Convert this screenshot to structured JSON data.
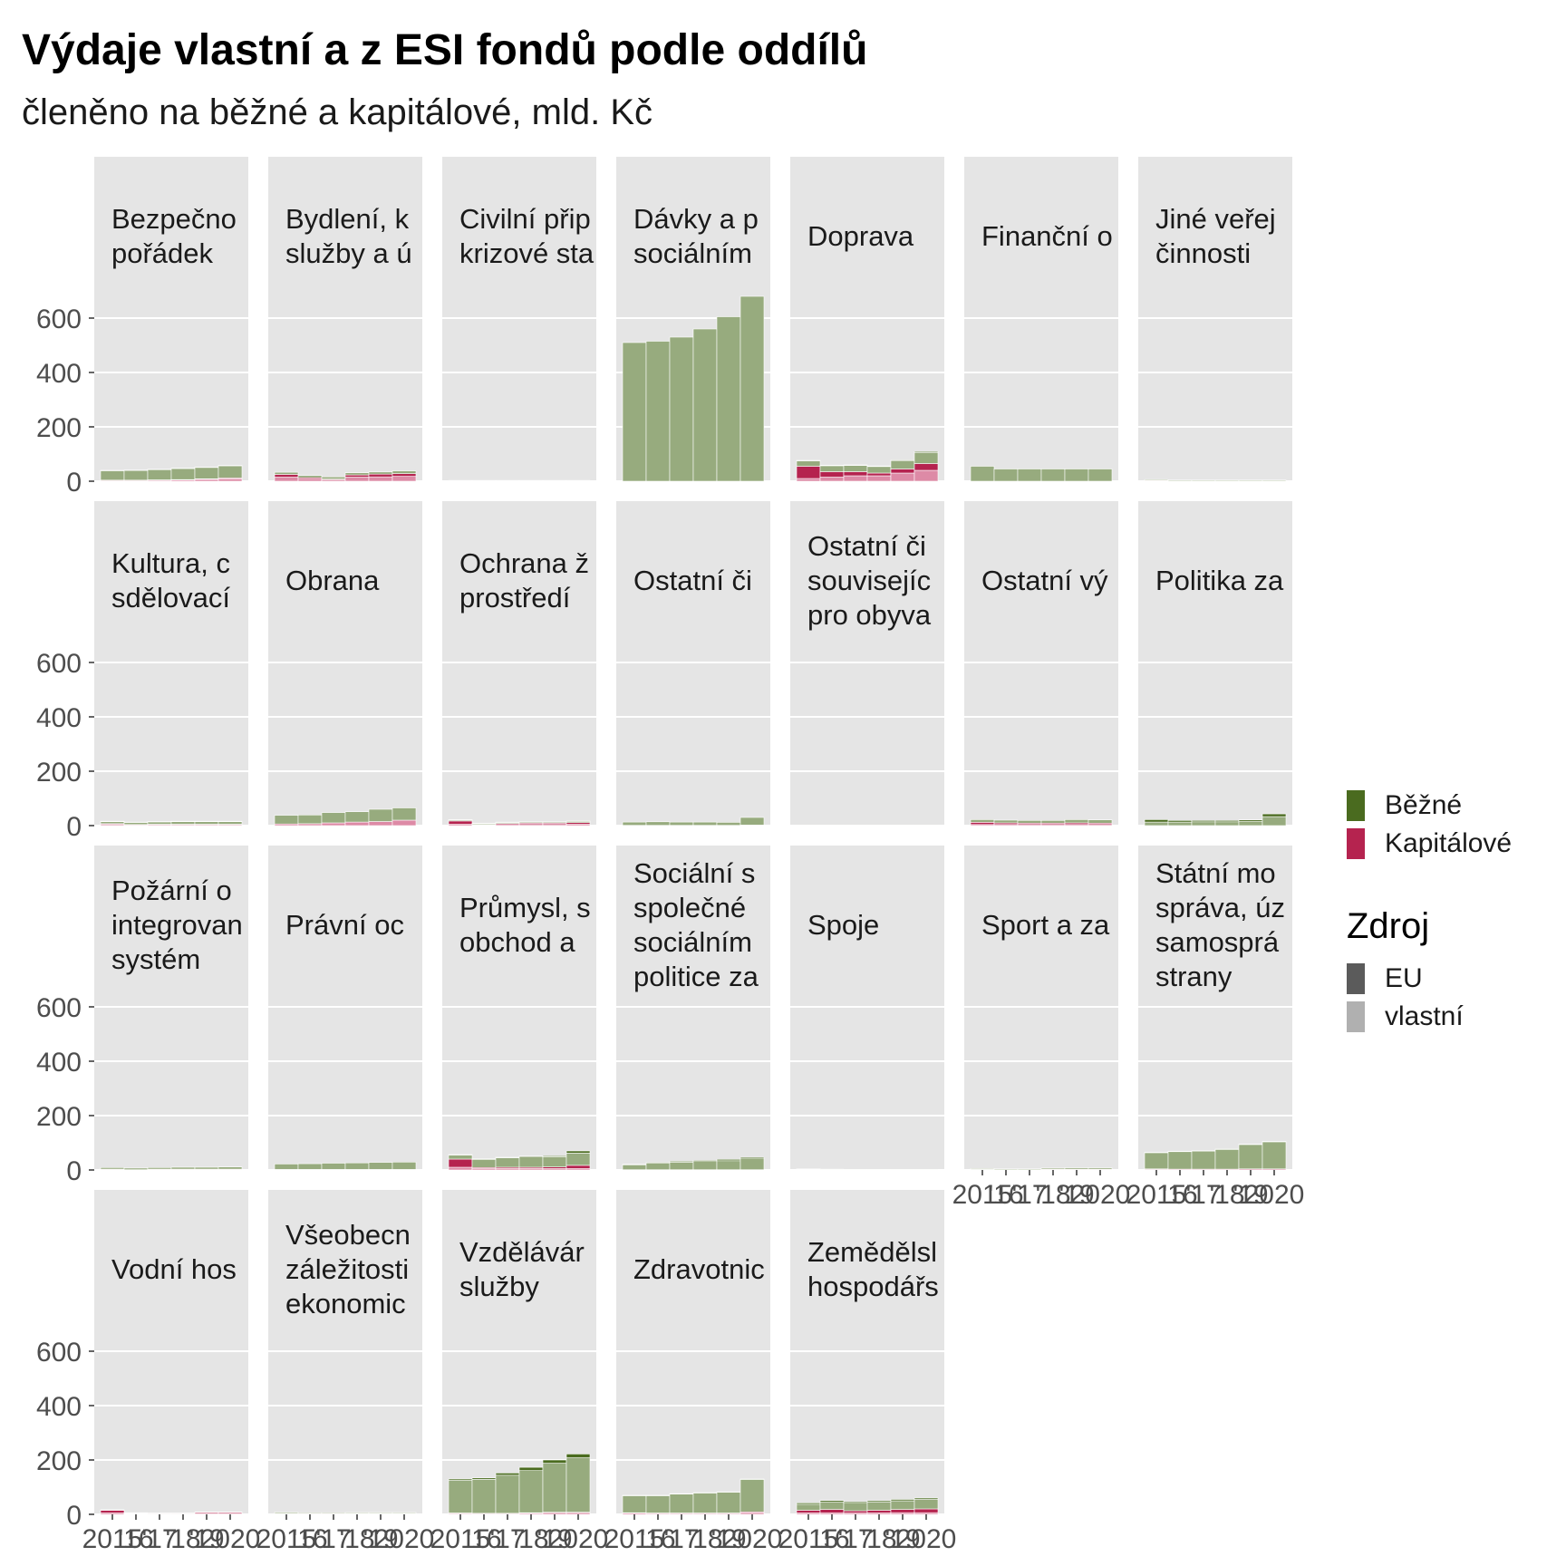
{
  "chart_data": {
    "type": "bar",
    "title": "Výdaje vlastní a z ESI fondů podle oddílů",
    "subtitle": "členěno na běžné a kapitálové, mld. Kč",
    "facet_layout": "wrap, 7 columns, shared axes",
    "x": [
      "2015",
      "2016",
      "2017",
      "2018",
      "2019",
      "2020"
    ],
    "x_tick_labels": [
      "2015",
      "'16",
      "'17",
      "'18",
      "'19",
      "2020"
    ],
    "y_ticks": [
      0,
      200,
      400,
      600
    ],
    "ylim": [
      0,
      700
    ],
    "xlabel": "",
    "ylabel": "",
    "grid": true,
    "legend": {
      "position": "right",
      "type_items": [
        {
          "label": "Běžné",
          "color": "#4a6b1f"
        },
        {
          "label": "Kapitálové",
          "color": "#b5234f"
        }
      ],
      "source_title": "Zdroj",
      "source_items": [
        {
          "label": "EU",
          "color": "#5b5b5b"
        },
        {
          "label": "vlastní",
          "color": "#b0b0b0"
        }
      ]
    },
    "colors": {
      "bezne_vlastni": "#97ab7e",
      "bezne_eu": "#4a6b1f",
      "kapitalove_vlastni": "#dd8aa6",
      "kapitalove_eu": "#b5234f",
      "panel_bg": "#e5e5e5",
      "grid": "#ffffff",
      "axis_text": "#4d4d4d"
    },
    "stack_order": [
      "kapitalove_vlastni",
      "kapitalove_eu",
      "bezne_vlastni",
      "bezne_eu"
    ],
    "facets": [
      {
        "label": "Bezpečnost a veřejný pořádek",
        "shown": [
          "Bezpečno",
          "pořádek"
        ],
        "bezne_vlastni": [
          35,
          36,
          38,
          41,
          42,
          45
        ],
        "bezne_eu": [
          1,
          1,
          1,
          1,
          1,
          1
        ],
        "kapitalove_vlastni": [
          3,
          3,
          4,
          5,
          7,
          9
        ],
        "kapitalove_eu": [
          1,
          1,
          1,
          1,
          2,
          3
        ]
      },
      {
        "label": "Bydlení, komunální služby a územní rozvoj",
        "shown": [
          "Bydlení, k",
          "služby a ú"
        ],
        "bezne_vlastni": [
          8,
          8,
          8,
          8,
          8,
          10
        ],
        "bezne_eu": [
          0,
          0,
          0,
          0,
          0,
          0
        ],
        "kapitalove_vlastni": [
          15,
          8,
          5,
          15,
          16,
          18
        ],
        "kapitalove_eu": [
          10,
          5,
          3,
          8,
          10,
          10
        ]
      },
      {
        "label": "Civilní připravenost na krizové stavy",
        "shown": [
          "Civilní přip",
          "krizové sta"
        ],
        "bezne_vlastni": [
          2,
          2,
          2,
          2,
          2,
          2
        ],
        "bezne_eu": [
          0,
          0,
          0,
          0,
          0,
          0
        ],
        "kapitalove_vlastni": [
          1,
          1,
          1,
          1,
          1,
          1
        ],
        "kapitalove_eu": [
          0,
          0,
          0,
          0,
          0,
          0
        ]
      },
      {
        "label": "Dávky a podpory v sociálním zabezpečení",
        "shown": [
          "Dávky a p",
          "sociálním"
        ],
        "bezne_vlastni": [
          510,
          515,
          530,
          560,
          605,
          680
        ],
        "bezne_eu": [
          0,
          0,
          0,
          0,
          0,
          0
        ],
        "kapitalove_vlastni": [
          0,
          0,
          0,
          0,
          0,
          0
        ],
        "kapitalove_eu": [
          0,
          0,
          0,
          0,
          0,
          0
        ]
      },
      {
        "label": "Doprava",
        "shown": [
          "Doprava"
        ],
        "bezne_vlastni": [
          20,
          22,
          23,
          24,
          30,
          40
        ],
        "bezne_eu": [
          2,
          2,
          2,
          2,
          3,
          4
        ],
        "kapitalove_vlastni": [
          10,
          15,
          20,
          20,
          30,
          40
        ],
        "kapitalove_eu": [
          45,
          20,
          15,
          10,
          15,
          25
        ]
      },
      {
        "label": "Finanční operace",
        "shown": [
          "Finanční o"
        ],
        "bezne_vlastni": [
          55,
          45,
          45,
          45,
          45,
          45
        ],
        "bezne_eu": [
          0,
          0,
          0,
          0,
          0,
          0
        ],
        "kapitalove_vlastni": [
          0,
          0,
          0,
          0,
          0,
          0
        ],
        "kapitalove_eu": [
          0,
          0,
          0,
          0,
          0,
          0
        ]
      },
      {
        "label": "Jiné veřejné služby a činnosti",
        "shown": [
          "Jiné veřej",
          "činnosti"
        ],
        "bezne_vlastni": [
          3,
          3,
          3,
          3,
          3,
          3
        ],
        "bezne_eu": [
          0,
          0,
          0,
          0,
          0,
          0
        ],
        "kapitalove_vlastni": [
          2,
          1,
          1,
          1,
          1,
          1
        ],
        "kapitalove_eu": [
          1,
          0,
          0,
          0,
          0,
          0
        ]
      },
      {
        "label": "Kultura, církve a sdělovací prostředky",
        "shown": [
          "Kultura, c",
          "sdělovací"
        ],
        "bezne_vlastni": [
          8,
          8,
          9,
          10,
          10,
          10
        ],
        "bezne_eu": [
          1,
          1,
          1,
          1,
          1,
          1
        ],
        "kapitalove_vlastni": [
          4,
          3,
          4,
          4,
          4,
          4
        ],
        "kapitalove_eu": [
          3,
          1,
          1,
          1,
          1,
          1
        ]
      },
      {
        "label": "Obrana",
        "shown": [
          "Obrana"
        ],
        "bezne_vlastni": [
          32,
          32,
          38,
          38,
          45,
          45
        ],
        "bezne_eu": [
          0,
          0,
          0,
          0,
          0,
          0
        ],
        "kapitalove_vlastni": [
          6,
          7,
          10,
          13,
          15,
          20
        ],
        "kapitalove_eu": [
          0,
          0,
          0,
          0,
          0,
          0
        ]
      },
      {
        "label": "Ochrana životního prostředí",
        "shown": [
          "Ochrana ž",
          "prostředí"
        ],
        "bezne_vlastni": [
          4,
          4,
          4,
          4,
          4,
          5
        ],
        "bezne_eu": [
          1,
          1,
          1,
          1,
          1,
          1
        ],
        "kapitalove_vlastni": [
          5,
          2,
          4,
          4,
          4,
          5
        ],
        "kapitalove_eu": [
          12,
          2,
          4,
          5,
          5,
          6
        ]
      },
      {
        "label": "Ostatní činnosti",
        "shown": [
          "Ostatní či"
        ],
        "bezne_vlastni": [
          12,
          13,
          12,
          12,
          11,
          28
        ],
        "bezne_eu": [
          0,
          0,
          0,
          0,
          0,
          0
        ],
        "kapitalove_vlastni": [
          1,
          1,
          1,
          1,
          1,
          2
        ],
        "kapitalove_eu": [
          0,
          0,
          0,
          0,
          0,
          0
        ]
      },
      {
        "label": "Ostatní činnosti související se službami pro obyvatelstvo",
        "shown": [
          "Ostatní či",
          "souvisejíc",
          "pro obyva"
        ],
        "bezne_vlastni": [
          1,
          1,
          1,
          1,
          1,
          1
        ],
        "bezne_eu": [
          0,
          0,
          0,
          0,
          0,
          0
        ],
        "kapitalove_vlastni": [
          1,
          1,
          1,
          1,
          1,
          1
        ],
        "kapitalove_eu": [
          0,
          0,
          0,
          0,
          0,
          0
        ]
      },
      {
        "label": "Ostatní výdaje",
        "shown": [
          "Ostatní vý"
        ],
        "bezne_vlastni": [
          10,
          10,
          10,
          10,
          12,
          12
        ],
        "bezne_eu": [
          0,
          0,
          0,
          0,
          0,
          0
        ],
        "kapitalove_vlastni": [
          4,
          4,
          4,
          4,
          4,
          4
        ],
        "kapitalove_eu": [
          8,
          6,
          5,
          5,
          6,
          5
        ]
      },
      {
        "label": "Politika zaměstnanosti",
        "shown": [
          "Politika za"
        ],
        "bezne_vlastni": [
          13,
          13,
          14,
          14,
          16,
          33
        ],
        "bezne_eu": [
          9,
          6,
          5,
          5,
          5,
          10
        ],
        "kapitalove_vlastni": [
          0,
          0,
          0,
          0,
          0,
          0
        ],
        "kapitalove_eu": [
          0,
          0,
          0,
          0,
          0,
          0
        ]
      },
      {
        "label": "Požární ochrana a integrovaný záchranný systém",
        "shown": [
          "Požární o",
          "integrovan",
          "systém"
        ],
        "bezne_vlastni": [
          6,
          6,
          6,
          7,
          7,
          8
        ],
        "bezne_eu": [
          0,
          0,
          0,
          0,
          0,
          0
        ],
        "kapitalove_vlastni": [
          2,
          1,
          2,
          2,
          2,
          2
        ],
        "kapitalove_eu": [
          1,
          0,
          1,
          1,
          1,
          1
        ]
      },
      {
        "label": "Právní ochrana",
        "shown": [
          "Právní oc"
        ],
        "bezne_vlastni": [
          20,
          21,
          23,
          24,
          26,
          27
        ],
        "bezne_eu": [
          0,
          0,
          0,
          0,
          0,
          0
        ],
        "kapitalove_vlastni": [
          2,
          2,
          2,
          2,
          2,
          2
        ],
        "kapitalove_eu": [
          0,
          0,
          0,
          0,
          0,
          0
        ]
      },
      {
        "label": "Průmysl, stavebnictví, obchod a služby",
        "shown": [
          "Průmysl, s",
          "obchod a"
        ],
        "bezne_vlastni": [
          15,
          30,
          35,
          38,
          38,
          45
        ],
        "bezne_eu": [
          2,
          2,
          2,
          3,
          3,
          8
        ],
        "kapitalove_vlastni": [
          10,
          5,
          5,
          5,
          5,
          5
        ],
        "kapitalove_eu": [
          30,
          4,
          5,
          5,
          6,
          12
        ]
      },
      {
        "label": "Sociální služby a společné činnosti v sociálním zabezpečení a politice zaměstnanosti",
        "shown": [
          "Sociální s",
          "společné",
          "sociálním",
          "politice za"
        ],
        "bezne_vlastni": [
          18,
          24,
          28,
          30,
          33,
          40
        ],
        "bezne_eu": [
          2,
          3,
          3,
          4,
          5,
          5
        ],
        "kapitalove_vlastni": [
          1,
          1,
          1,
          1,
          1,
          1
        ],
        "kapitalove_eu": [
          0,
          0,
          0,
          0,
          0,
          0
        ]
      },
      {
        "label": "Spoje",
        "shown": [
          "Spoje"
        ],
        "bezne_vlastni": [
          1,
          1,
          1,
          1,
          1,
          1
        ],
        "bezne_eu": [
          0,
          0,
          0,
          0,
          0,
          0
        ],
        "kapitalove_vlastni": [
          1,
          1,
          1,
          1,
          1,
          1
        ],
        "kapitalove_eu": [
          2,
          1,
          0,
          0,
          0,
          0
        ]
      },
      {
        "label": "Sport a zájmová činnost",
        "shown": [
          "Sport a za"
        ],
        "bezne_vlastni": [
          3,
          3,
          3,
          4,
          5,
          5
        ],
        "bezne_eu": [
          0,
          0,
          0,
          0,
          0,
          0
        ],
        "kapitalove_vlastni": [
          1,
          1,
          1,
          2,
          2,
          2
        ],
        "kapitalove_eu": [
          1,
          0,
          0,
          1,
          1,
          1
        ]
      },
      {
        "label": "Státní moc, státní správa, územní samospráva a politické strany",
        "shown": [
          "Státní mo",
          "správa, úz",
          "samosprá",
          "strany"
        ],
        "bezne_vlastni": [
          60,
          65,
          67,
          73,
          90,
          100
        ],
        "bezne_eu": [
          1,
          1,
          1,
          1,
          1,
          1
        ],
        "kapitalove_vlastni": [
          3,
          3,
          3,
          3,
          4,
          4
        ],
        "kapitalove_eu": [
          1,
          0,
          0,
          0,
          0,
          0
        ]
      },
      {
        "label": "Vodní hospodářství",
        "shown": [
          "Vodní hos"
        ],
        "bezne_vlastni": [
          2,
          2,
          2,
          2,
          2,
          2
        ],
        "bezne_eu": [
          0,
          0,
          0,
          0,
          0,
          0
        ],
        "kapitalove_vlastni": [
          5,
          2,
          2,
          2,
          3,
          3
        ],
        "kapitalove_eu": [
          10,
          2,
          1,
          1,
          4,
          4
        ]
      },
      {
        "label": "Všeobecné hospodářské, obchodní a pracovní záležitosti v ekonomice",
        "shown": [
          "Všeobecn",
          "záležitosti",
          "ekonomic"
        ],
        "bezne_vlastni": [
          4,
          3,
          3,
          3,
          3,
          3
        ],
        "bezne_eu": [
          0,
          0,
          0,
          0,
          0,
          0
        ],
        "kapitalove_vlastni": [
          2,
          2,
          2,
          2,
          2,
          2
        ],
        "kapitalove_eu": [
          2,
          1,
          1,
          2,
          2,
          2
        ]
      },
      {
        "label": "Vzdělávání a školské služby",
        "shown": [
          "Vzdělávár",
          "služby"
        ],
        "bezne_vlastni": [
          120,
          125,
          140,
          155,
          180,
          200
        ],
        "bezne_eu": [
          5,
          5,
          8,
          12,
          12,
          14
        ],
        "kapitalove_vlastni": [
          3,
          3,
          3,
          4,
          5,
          5
        ],
        "kapitalove_eu": [
          2,
          1,
          1,
          2,
          3,
          3
        ]
      },
      {
        "label": "Zdravotnictví",
        "shown": [
          "Zdravotnic"
        ],
        "bezne_vlastni": [
          63,
          64,
          70,
          74,
          77,
          120
        ],
        "bezne_eu": [
          1,
          1,
          1,
          1,
          1,
          1
        ],
        "kapitalove_vlastni": [
          5,
          4,
          4,
          4,
          4,
          6
        ],
        "kapitalove_eu": [
          1,
          1,
          1,
          1,
          1,
          3
        ]
      },
      {
        "label": "Zemědělství, lesní hospodářství a rybářství",
        "shown": [
          "Zemědělsl",
          "hospodářs"
        ],
        "bezne_vlastni": [
          22,
          28,
          28,
          30,
          32,
          35
        ],
        "bezne_eu": [
          5,
          5,
          5,
          5,
          5,
          5
        ],
        "kapitalove_vlastni": [
          5,
          5,
          5,
          5,
          6,
          6
        ],
        "kapitalove_eu": [
          10,
          13,
          8,
          10,
          12,
          14
        ]
      }
    ]
  }
}
